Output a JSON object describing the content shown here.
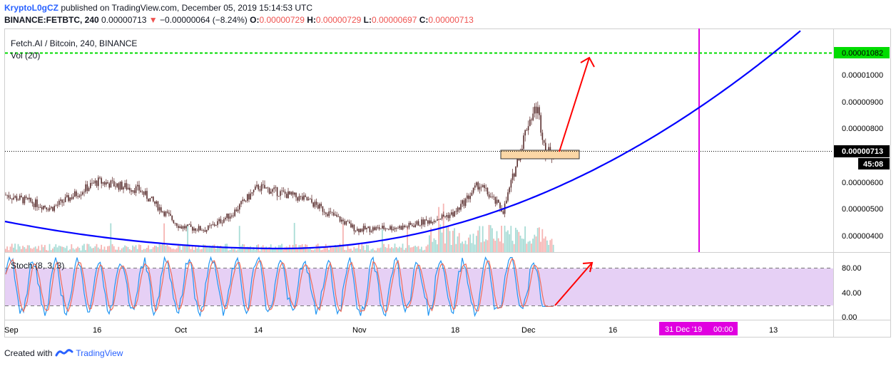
{
  "header": {
    "author": "KryptoL0gCZ",
    "published_text": "published on TradingView.com, December 05, 2019 15:14:53 UTC",
    "symbol_line": "BINANCE:FETBTC, 240",
    "last_price": "0.00000713",
    "change_arrow": "▼",
    "change": "−0.00000064 (−8.24%)",
    "o_label": "O:",
    "o_value": "0.00000729",
    "h_label": "H:",
    "h_value": "0.00000729",
    "l_label": "L:",
    "l_value": "0.00000697",
    "c_label": "C:",
    "c_value": "0.00000713"
  },
  "main_pane": {
    "title": "Fetch.AI / Bitcoin, 240, BINANCE",
    "volume_label": "Vol (20)"
  },
  "stoch_pane": {
    "title": "Stoch (8, 3, 3)"
  },
  "footer": {
    "created_with": "Created with",
    "brand": "TradingView"
  },
  "colors": {
    "up": "#26a69a",
    "down": "#ef5350",
    "curve": "#0000ff",
    "target_line": "#00dd00",
    "vertical_line": "#e000e0",
    "arrow": "#ff0000",
    "stoch_fill": "#e6d0f5",
    "k_line": "#2196f3",
    "d_line": "#ef6c5a"
  },
  "chart_data": [
    {
      "type": "candlestick",
      "title": "Fetch.AI / Bitcoin, 240, BINANCE",
      "y_axis_ticks": [
        "0.00001000",
        "0.00000900",
        "0.00000800",
        "0.00000600",
        "0.00000500",
        "0.00000400"
      ],
      "ylim": [
        3.5e-06,
        1.16e-05
      ],
      "x_axis_ticks": [
        "Sep",
        "16",
        "Oct",
        "14",
        "Nov",
        "18",
        "Dec",
        "16",
        "31 Dec '19",
        "13"
      ],
      "price_path": [
        [
          "Sep",
          5.5e-06
        ],
        [
          "Sep",
          5e-06
        ],
        [
          "16",
          6e-06
        ],
        [
          "16",
          5.7e-06
        ],
        [
          "Oct",
          4.3e-06
        ],
        [
          "Oct",
          4.2e-06
        ],
        [
          "Oct",
          4.8e-06
        ],
        [
          "14",
          5.8e-06
        ],
        [
          "14",
          5.3e-06
        ],
        [
          "Nov",
          4.2e-06
        ],
        [
          "Nov",
          4.3e-06
        ],
        [
          "18",
          4.8e-06
        ],
        [
          "18",
          5.9e-06
        ],
        [
          "18",
          4.9e-06
        ],
        [
          "Dec",
          8.2e-06
        ],
        [
          "Dec",
          8.8e-06
        ],
        [
          "Dec",
          7.1e-06
        ]
      ],
      "current_price_label": "0.00000713",
      "countdown_label": "45:08",
      "target_price_label": "0.00001082",
      "target_price": 1.082e-05,
      "support_zone": [
        6.9e-06,
        7.2e-06
      ],
      "vertical_marker": "31 Dec '19",
      "vertical_marker_time": "00:00",
      "volume": "Vol (20)",
      "curve": "parabolic support"
    },
    {
      "type": "line",
      "title": "Stoch (8, 3, 3)",
      "y_axis_ticks": [
        "80.00",
        "40.00",
        "0.00"
      ],
      "ylim": [
        -5,
        100
      ],
      "levels": [
        80,
        20
      ],
      "series": [
        {
          "name": "%K"
        },
        {
          "name": "%D"
        }
      ],
      "last_value": 20
    }
  ]
}
